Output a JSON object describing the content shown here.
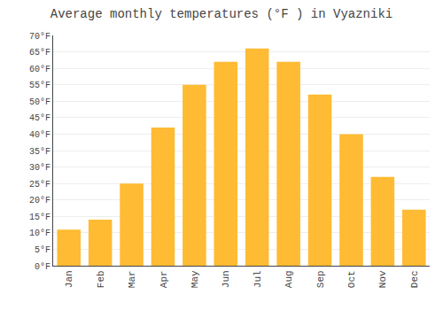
{
  "chart_data": {
    "type": "bar",
    "title": "Average monthly temperatures (°F ) in Vyazniki",
    "categories": [
      "Jan",
      "Feb",
      "Mar",
      "Apr",
      "May",
      "Jun",
      "Jul",
      "Aug",
      "Sep",
      "Oct",
      "Nov",
      "Dec"
    ],
    "values": [
      11,
      14,
      25,
      42,
      55,
      62,
      66,
      62,
      52,
      40,
      27,
      17
    ],
    "color": "#FFBB33",
    "ylim": [
      0,
      70
    ],
    "yticks": [
      {
        "value": 0,
        "label": "0°F"
      },
      {
        "value": 5,
        "label": "5°F"
      },
      {
        "value": 10,
        "label": "10°F"
      },
      {
        "value": 15,
        "label": "15°F"
      },
      {
        "value": 20,
        "label": "20°F"
      },
      {
        "value": 25,
        "label": "25°F"
      },
      {
        "value": 30,
        "label": "30°F"
      },
      {
        "value": 35,
        "label": "35°F"
      },
      {
        "value": 40,
        "label": "40°F"
      },
      {
        "value": 45,
        "label": "45°F"
      },
      {
        "value": 50,
        "label": "50°F"
      },
      {
        "value": 55,
        "label": "55°F"
      },
      {
        "value": 60,
        "label": "60°F"
      },
      {
        "value": 65,
        "label": "65°F"
      },
      {
        "value": 70,
        "label": "70°F"
      }
    ],
    "grid": true
  }
}
